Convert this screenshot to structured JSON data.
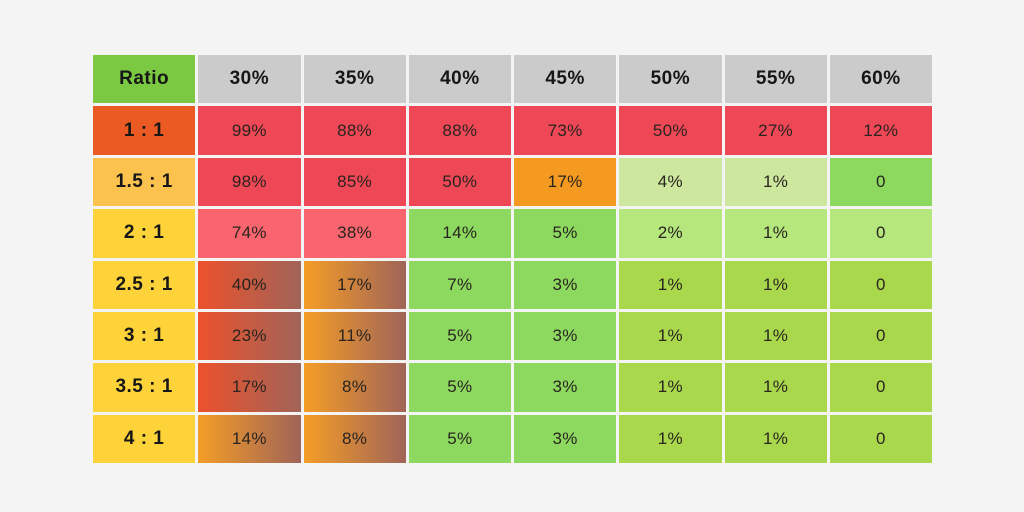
{
  "page": {
    "background_color": "#f4f4f4"
  },
  "heatmap": {
    "corner_label": "Ratio",
    "column_headers": [
      "30%",
      "35%",
      "40%",
      "45%",
      "50%",
      "55%",
      "60%"
    ],
    "rows": [
      {
        "label": "1 : 1",
        "label_style": "label-orange",
        "cells": [
          "99%",
          "88%",
          "88%",
          "73%",
          "50%",
          "27%",
          "12%"
        ],
        "styles": [
          "red",
          "red",
          "red",
          "red",
          "red",
          "red",
          "red"
        ]
      },
      {
        "label": "1.5 : 1",
        "label_style": "label-amber",
        "cells": [
          "98%",
          "85%",
          "50%",
          "17%",
          "4%",
          "1%",
          "0"
        ],
        "styles": [
          "red",
          "red",
          "red",
          "orange",
          "green-pale",
          "green-pale",
          "green-mid"
        ]
      },
      {
        "label": "2 : 1",
        "label_style": "label-yellow",
        "cells": [
          "74%",
          "38%",
          "14%",
          "5%",
          "2%",
          "1%",
          "0"
        ],
        "styles": [
          "pink",
          "pink",
          "green-mid",
          "green-mid",
          "green-light",
          "green-light",
          "green-light"
        ]
      },
      {
        "label": "2.5 : 1",
        "label_style": "label-yellow",
        "cells": [
          "40%",
          "17%",
          "7%",
          "3%",
          "1%",
          "1%",
          "0"
        ],
        "styles": [
          "grad-red-brown",
          "grad-amber-brown",
          "green-mid",
          "green-mid",
          "green-yellow",
          "green-yellow",
          "green-yellow"
        ]
      },
      {
        "label": "3 : 1",
        "label_style": "label-yellow",
        "cells": [
          "23%",
          "11%",
          "5%",
          "3%",
          "1%",
          "1%",
          "0"
        ],
        "styles": [
          "grad-red-brown",
          "grad-amber-brown",
          "green-mid",
          "green-mid",
          "green-yellow",
          "green-yellow",
          "green-yellow"
        ]
      },
      {
        "label": "3.5 : 1",
        "label_style": "label-yellow",
        "cells": [
          "17%",
          "8%",
          "5%",
          "3%",
          "1%",
          "1%",
          "0"
        ],
        "styles": [
          "grad-red-brown",
          "grad-amber-brown",
          "green-mid",
          "green-mid",
          "green-yellow",
          "green-yellow",
          "green-yellow"
        ]
      },
      {
        "label": "4 : 1",
        "label_style": "label-yellow",
        "cells": [
          "14%",
          "8%",
          "5%",
          "3%",
          "1%",
          "1%",
          "0"
        ],
        "styles": [
          "grad-amber-brown",
          "grad-amber-brown",
          "green-mid",
          "green-mid",
          "green-yellow",
          "green-yellow",
          "green-yellow"
        ]
      }
    ],
    "palette": {
      "header-green": "#7bc843",
      "header-gray": "#cbcbcb",
      "label-orange": "#ea5a22",
      "label-amber": "#fbc24d",
      "label-yellow": "#fdd339",
      "red": "#ee4755",
      "pink": "#f9656e",
      "orange": "#f49a20",
      "green-pale": "#cde89e",
      "green-light": "#b5e77c",
      "green-mid": "#8dd95f",
      "green-yellow": "#a9d84c",
      "grad-red-brown": "linear-gradient(90deg, #ec512c 0%, #a06458 100%)",
      "grad-amber-brown": "linear-gradient(90deg, #f49d27 0%, #a06458 100%)",
      "grid_line": "#ffffff",
      "text_color": "#29241f"
    }
  },
  "chart_data": {
    "type": "heatmap",
    "title": "",
    "corner_label": "Ratio",
    "x_categories": [
      "30%",
      "35%",
      "40%",
      "45%",
      "50%",
      "55%",
      "60%"
    ],
    "y_categories": [
      "1 : 1",
      "1.5 : 1",
      "2 : 1",
      "2.5 : 1",
      "3 : 1",
      "3.5 : 1",
      "4 : 1"
    ],
    "values_percent": [
      [
        99,
        88,
        88,
        73,
        50,
        27,
        12
      ],
      [
        98,
        85,
        50,
        17,
        4,
        1,
        0
      ],
      [
        74,
        38,
        14,
        5,
        2,
        1,
        0
      ],
      [
        40,
        17,
        7,
        3,
        1,
        1,
        0
      ],
      [
        23,
        11,
        5,
        3,
        1,
        1,
        0
      ],
      [
        17,
        8,
        5,
        3,
        1,
        1,
        0
      ],
      [
        14,
        8,
        5,
        3,
        1,
        1,
        0
      ]
    ],
    "cell_text": [
      [
        "99%",
        "88%",
        "88%",
        "73%",
        "50%",
        "27%",
        "12%"
      ],
      [
        "98%",
        "85%",
        "50%",
        "17%",
        "4%",
        "1%",
        "0"
      ],
      [
        "74%",
        "38%",
        "14%",
        "5%",
        "2%",
        "1%",
        "0"
      ],
      [
        "40%",
        "17%",
        "7%",
        "3%",
        "1%",
        "1%",
        "0"
      ],
      [
        "23%",
        "11%",
        "5%",
        "3%",
        "1%",
        "1%",
        "0"
      ],
      [
        "17%",
        "8%",
        "5%",
        "3%",
        "1%",
        "1%",
        "0"
      ],
      [
        "14%",
        "8%",
        "5%",
        "3%",
        "1%",
        "1%",
        "0"
      ]
    ],
    "legend_position": "none",
    "grid": true
  }
}
